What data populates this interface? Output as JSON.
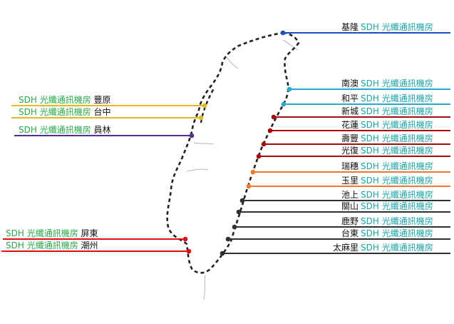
{
  "room_label": "SDH 光纖通訊機房",
  "colors": {
    "label_teal": "#1ba3a8",
    "label_green": "#2aa84a",
    "blue": "#1f4fbf",
    "light_blue": "#2aa6d0",
    "dark_red": "#a80a0a",
    "orange": "#ef7a2f",
    "dark_gray": "#303030",
    "yellow": "#e5b91f",
    "purple": "#5b2d8a",
    "red": "#e01010",
    "route": "#222222"
  },
  "east_stations": [
    {
      "name": "基隆",
      "color": "blue"
    },
    {
      "name": "南澳",
      "color": "light_blue"
    },
    {
      "name": "和平",
      "color": "light_blue"
    },
    {
      "name": "新城",
      "color": "dark_red"
    },
    {
      "name": "花蓮",
      "color": "dark_red"
    },
    {
      "name": "壽豐",
      "color": "dark_red"
    },
    {
      "name": "光復",
      "color": "dark_red"
    },
    {
      "name": "瑞穗",
      "color": "orange"
    },
    {
      "name": "玉里",
      "color": "orange"
    },
    {
      "name": "池上",
      "color": "dark_gray"
    },
    {
      "name": "關山",
      "color": "dark_gray"
    },
    {
      "name": "鹿野",
      "color": "dark_gray"
    },
    {
      "name": "台東",
      "color": "dark_gray"
    },
    {
      "name": "太麻里",
      "color": "dark_gray"
    }
  ],
  "west_stations": [
    {
      "name": "豐原",
      "color": "yellow"
    },
    {
      "name": "台中",
      "color": "yellow"
    },
    {
      "name": "員林",
      "color": "purple"
    },
    {
      "name": "屏東",
      "color": "red"
    },
    {
      "name": "潮州",
      "color": "red"
    }
  ]
}
